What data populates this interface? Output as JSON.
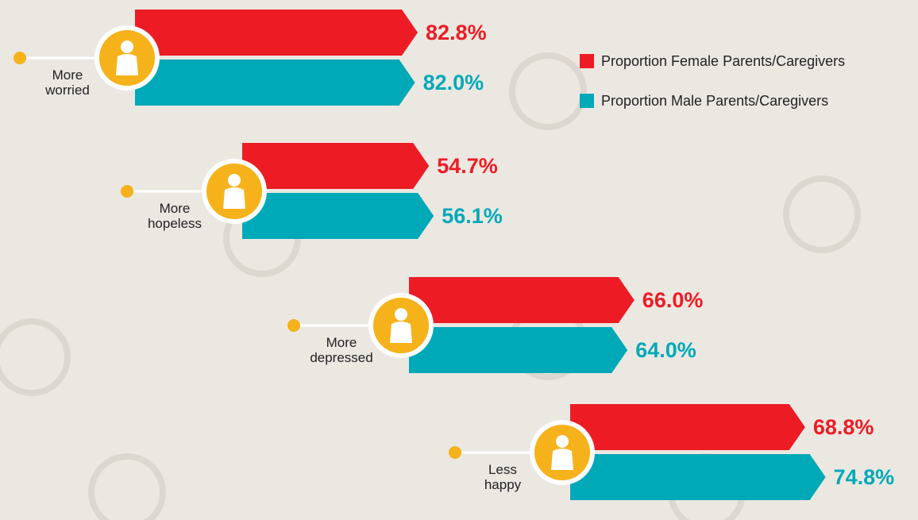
{
  "chart_data": {
    "type": "bar",
    "categories": [
      "More worried",
      "More hopeless",
      "More depressed",
      "Less happy"
    ],
    "series": [
      {
        "name": "Proportion Female Parents/Caregivers",
        "color": "#ed1c24",
        "values": [
          82.8,
          54.7,
          66.0,
          68.8
        ],
        "value_labels": [
          "82.8%",
          "54.7%",
          "66.0%",
          "68.8%"
        ]
      },
      {
        "name": "Proportion Male Parents/Caregivers",
        "color": "#00a9b8",
        "values": [
          82.0,
          56.1,
          64.0,
          74.8
        ],
        "value_labels": [
          "82.0%",
          "56.1%",
          "64.0%",
          "74.8%"
        ]
      }
    ]
  }
}
